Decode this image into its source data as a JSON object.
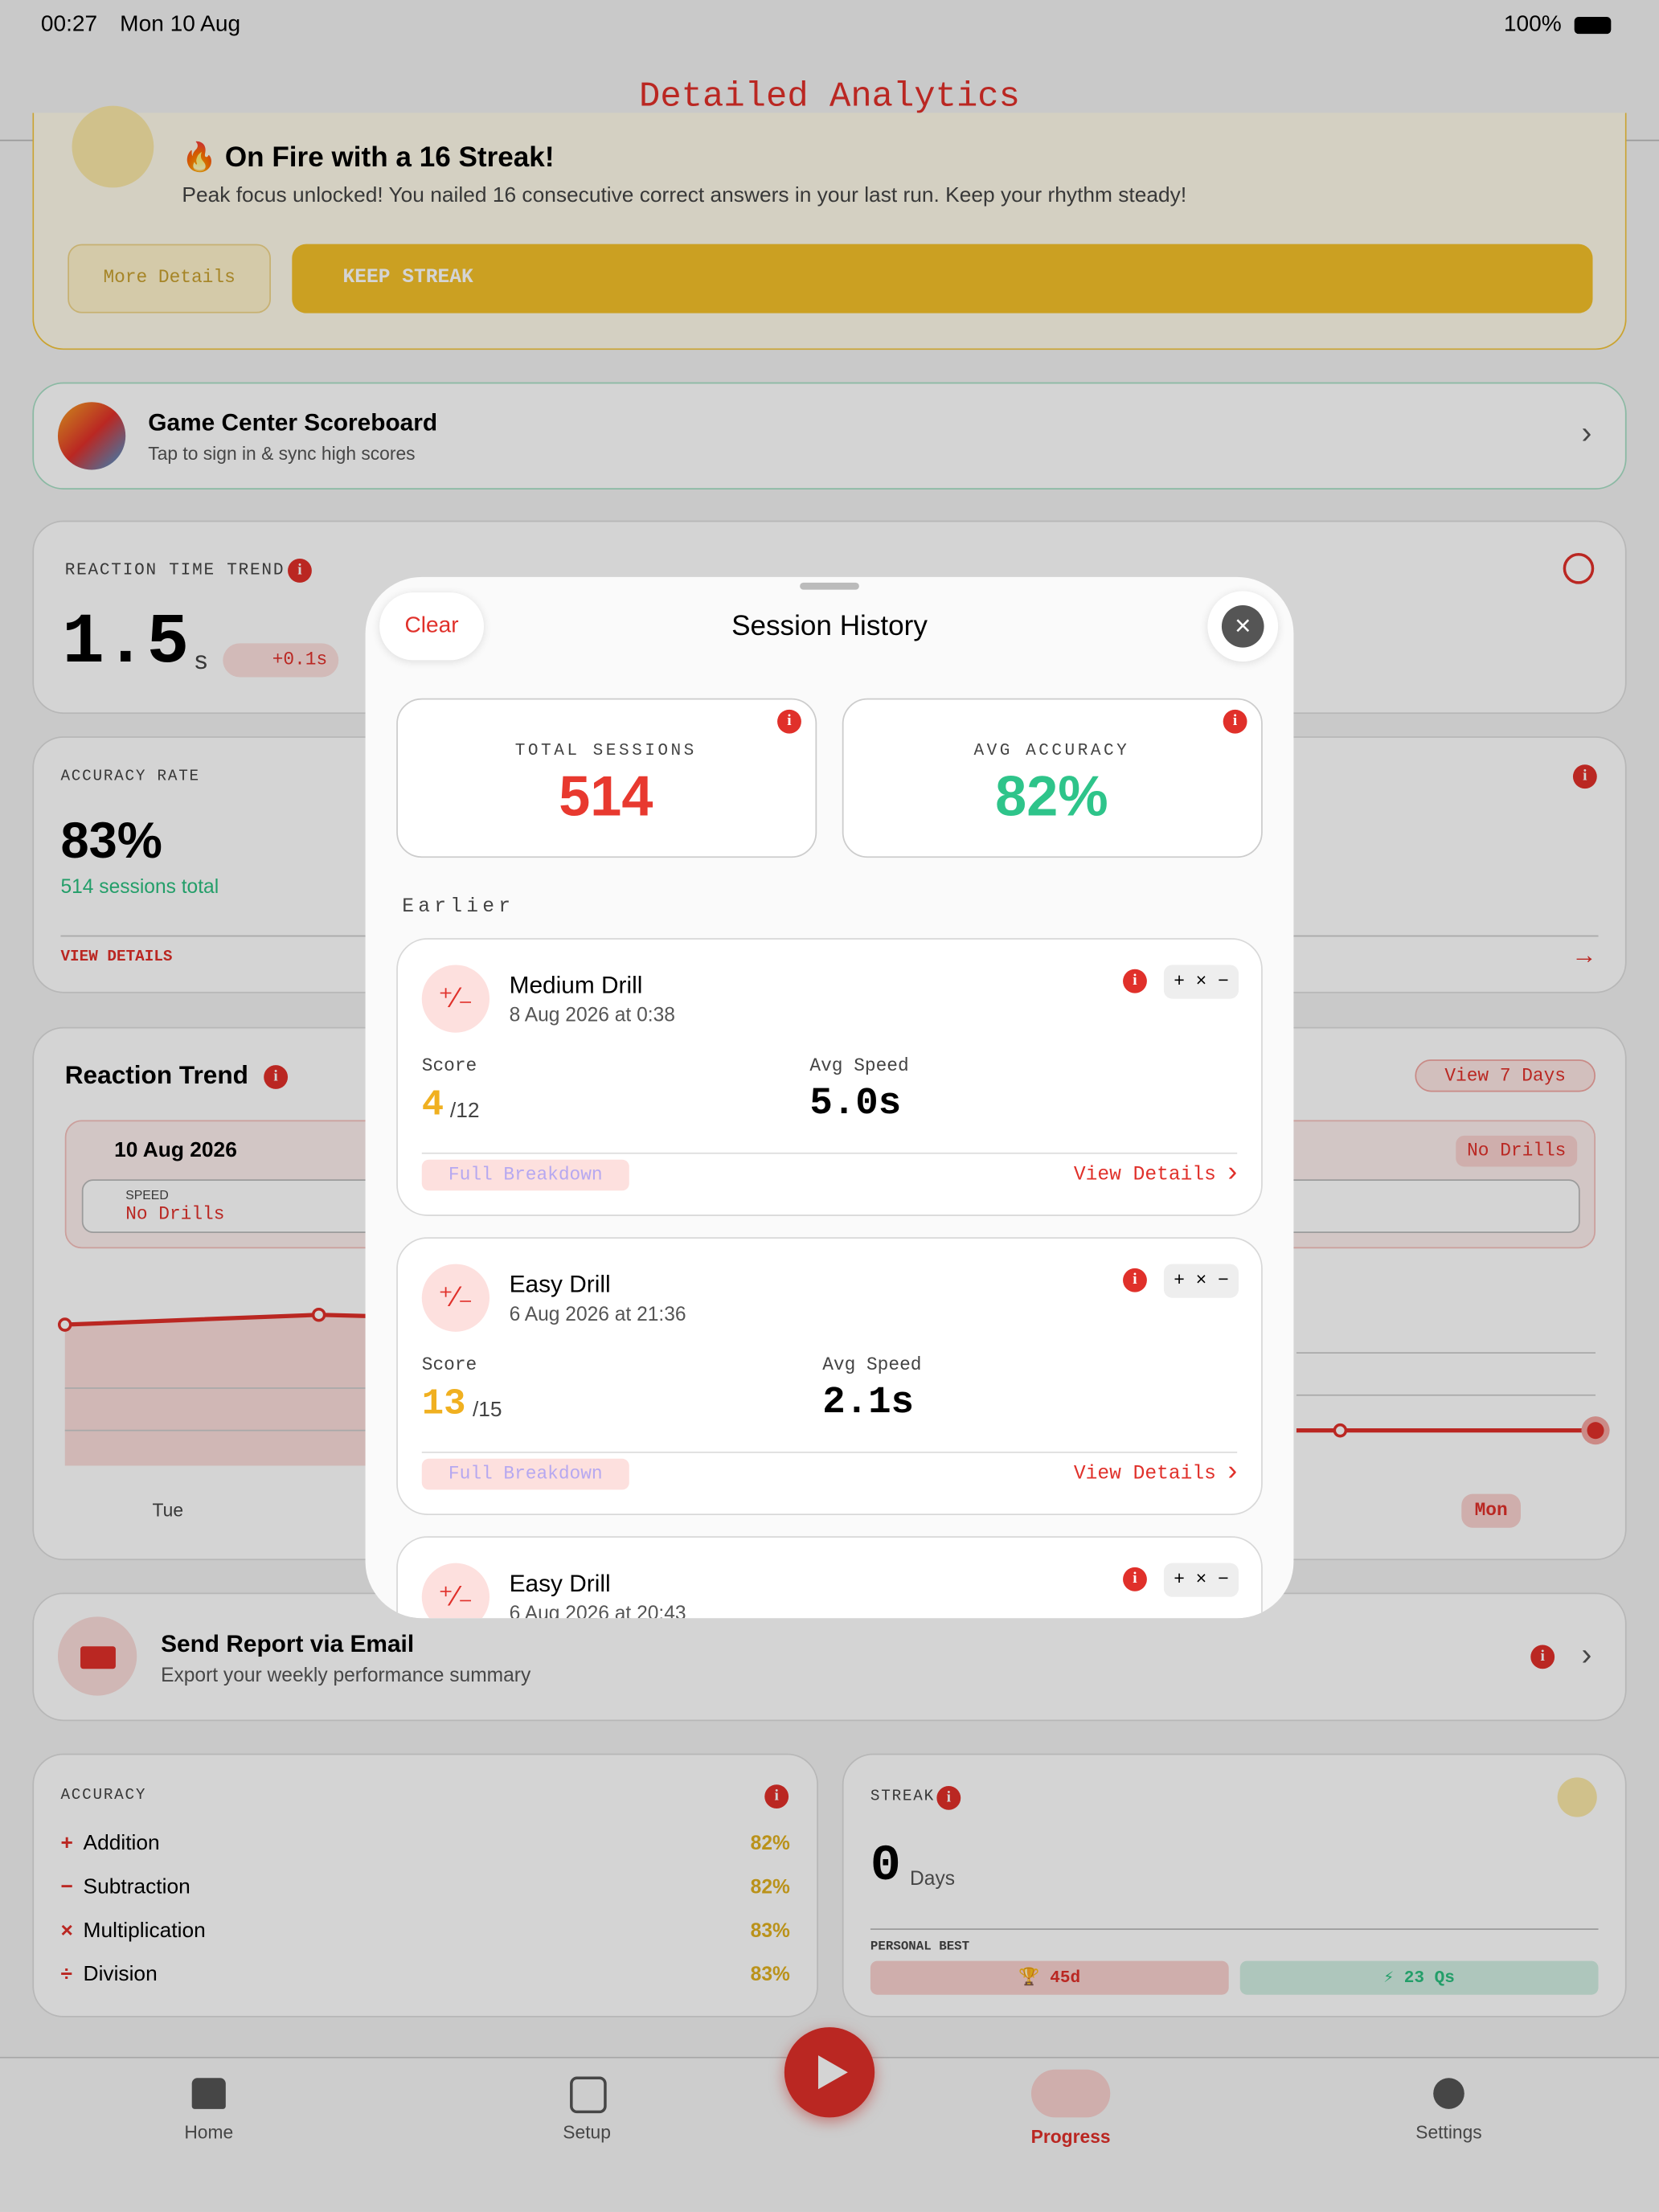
{
  "status_bar": {
    "time": "00:27",
    "date": "Mon 10 Aug",
    "battery": "100%"
  },
  "nav": {
    "title": "Detailed Analytics"
  },
  "streak_banner": {
    "title": "🔥 On Fire with a 16 Streak!",
    "message": "Peak focus unlocked! You nailed 16 consecutive correct answers in your last run. Keep your rhythm steady!",
    "more_button": "More Details",
    "keep_button": "KEEP STREAK"
  },
  "game_center": {
    "title": "Game Center Scoreboard",
    "subtitle": "Tap to sign in & sync high scores"
  },
  "reaction_time_trend": {
    "label": "REACTION TIME TREND",
    "value": "1.5",
    "unit": "s",
    "delta": "+0.1s"
  },
  "accuracy_rate": {
    "label": "ACCURACY RATE",
    "value": "83%",
    "sessions": "514 sessions total",
    "link": "VIEW DETAILS"
  },
  "reaction_trend": {
    "title": "Reaction Trend",
    "view_button": "View 7 Days",
    "date": "10 Aug 2026",
    "speed_label": "SPEED",
    "speed_value": "No Drills",
    "right_badge": "No Drills",
    "x_labels": [
      "Tue",
      "Mon"
    ]
  },
  "email": {
    "title": "Send Report via Email",
    "subtitle": "Export your weekly performance summary"
  },
  "accuracy": {
    "label": "ACCURACY",
    "rows": [
      {
        "symbol": "+",
        "name": "Addition",
        "value": "82%"
      },
      {
        "symbol": "−",
        "name": "Subtraction",
        "value": "82%"
      },
      {
        "symbol": "×",
        "name": "Multiplication",
        "value": "83%"
      },
      {
        "symbol": "÷",
        "name": "Division",
        "value": "83%"
      }
    ]
  },
  "streak": {
    "label": "STREAK",
    "value": "0",
    "unit": "Days",
    "best_label": "PERSONAL BEST",
    "best_days": "🏆 45d",
    "best_questions": "⚡ 23 Qs"
  },
  "tab_bar": {
    "tabs": [
      "Home",
      "Setup",
      "Progress",
      "Settings"
    ]
  },
  "modal": {
    "clear": "Clear",
    "title": "Session History",
    "stats": [
      {
        "label": "TOTAL SESSIONS",
        "value": "514"
      },
      {
        "label": "AVG ACCURACY",
        "value": "82%"
      }
    ],
    "section": "Earlier",
    "sessions": [
      {
        "name": "Medium Drill",
        "date": "8 Aug 2026 at 0:38",
        "ops": "+ × −",
        "score_label": "Score",
        "score": "4",
        "score_total": "/12",
        "speed_label": "Avg Speed",
        "speed": "5.0s",
        "breakdown": "Full Breakdown",
        "details": "View Details"
      },
      {
        "name": "Easy Drill",
        "date": "6 Aug 2026 at 21:36",
        "ops": "+ × −",
        "score_label": "Score",
        "score": "13",
        "score_total": "/15",
        "speed_label": "Avg Speed",
        "speed": "2.1s",
        "breakdown": "Full Breakdown",
        "details": "View Details"
      },
      {
        "name": "Easy Drill",
        "date": "6 Aug 2026 at 20:43",
        "ops": "+ × −"
      }
    ]
  }
}
